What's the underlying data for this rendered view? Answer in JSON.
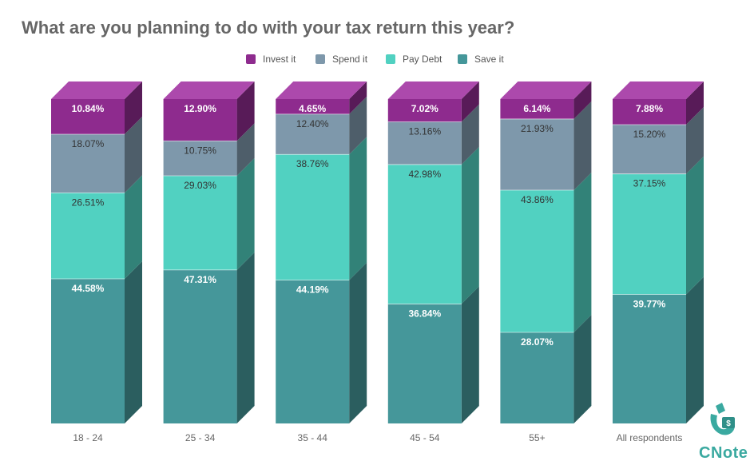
{
  "chart_data": {
    "type": "bar",
    "stacked": true,
    "style": "3d",
    "title": "What are you planning to do with your tax return this year?",
    "categories": [
      "18 - 24",
      "25 - 34",
      "35 - 44",
      "45 - 54",
      "55+",
      "All respondents"
    ],
    "series": [
      {
        "name": "Save it",
        "values": [
          44.58,
          47.31,
          44.19,
          36.84,
          28.07,
          39.77
        ],
        "labels": [
          "44.58%",
          "47.31%",
          "44.19%",
          "36.84%",
          "28.07%",
          "39.77%"
        ],
        "color": "#45979a",
        "label_color": "#ffffff"
      },
      {
        "name": "Pay Debt",
        "values": [
          26.51,
          29.03,
          38.76,
          42.98,
          43.86,
          37.15
        ],
        "labels": [
          "26.51%",
          "29.03%",
          "38.76%",
          "42.98%",
          "43.86%",
          "37.15%"
        ],
        "color": "#51d1c1",
        "label_color": "#333333"
      },
      {
        "name": "Spend it",
        "values": [
          18.07,
          10.75,
          12.4,
          13.16,
          21.93,
          15.2
        ],
        "labels": [
          "18.07%",
          "10.75%",
          "12.40%",
          "13.16%",
          "21.93%",
          "15.20%"
        ],
        "color": "#7e98ab",
        "label_color": "#333333"
      },
      {
        "name": "Invest it",
        "values": [
          10.84,
          12.9,
          4.65,
          7.02,
          6.14,
          7.88
        ],
        "labels": [
          "10.84%",
          "12.90%",
          "4.65%",
          "7.02%",
          "6.14%",
          "7.88%"
        ],
        "color": "#8e2b8e",
        "label_color": "#ffffff"
      }
    ],
    "legend_order": [
      "Invest it",
      "Spend it",
      "Pay Debt",
      "Save it"
    ],
    "legend_position": "top",
    "ylim": [
      0,
      100
    ],
    "grid": false,
    "xlabel": "",
    "ylabel": ""
  },
  "logo": {
    "text": "CNote",
    "icon": "cnote-hand-dollar-icon",
    "color": "#3aa9a0"
  }
}
